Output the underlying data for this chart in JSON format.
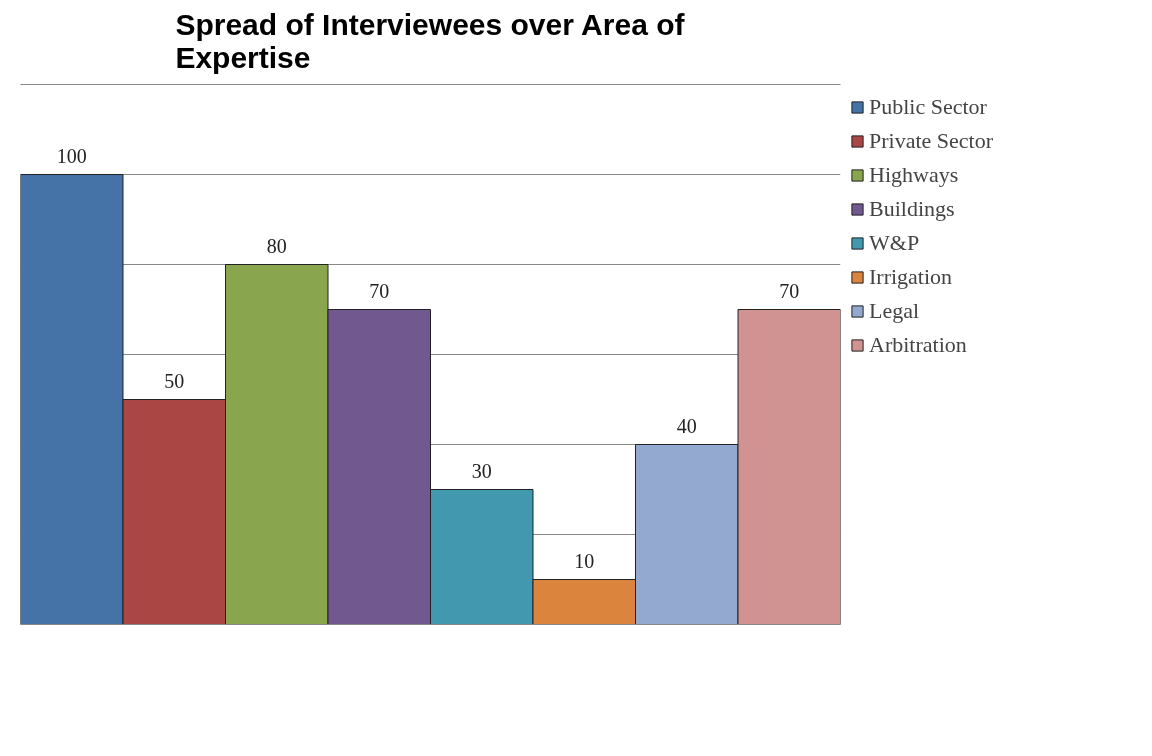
{
  "chart_data": {
    "type": "bar",
    "title": "Spread of Interviewees over Area of Expertise",
    "categories": [
      null
    ],
    "series": [
      {
        "name": "Public Sector",
        "color": "#4572a7",
        "values": [
          100
        ]
      },
      {
        "name": "Private Sector",
        "color": "#aa4643",
        "values": [
          50
        ]
      },
      {
        "name": "Highways",
        "color": "#89a54e",
        "values": [
          80
        ]
      },
      {
        "name": "Buildings",
        "color": "#71588f",
        "values": [
          70
        ]
      },
      {
        "name": "W&P",
        "color": "#4198af",
        "values": [
          30
        ]
      },
      {
        "name": "Irrigation",
        "color": "#db843d",
        "values": [
          10
        ]
      },
      {
        "name": "Legal",
        "color": "#93a9cf",
        "values": [
          40
        ]
      },
      {
        "name": "Arbitration",
        "color": "#d19392",
        "values": [
          70
        ]
      }
    ],
    "ylim": [
      0,
      120
    ],
    "yticks": [
      0,
      20,
      40,
      60,
      80,
      100
    ],
    "grid": "y",
    "legend": "right",
    "tick_labels": false,
    "data_labels": true
  }
}
